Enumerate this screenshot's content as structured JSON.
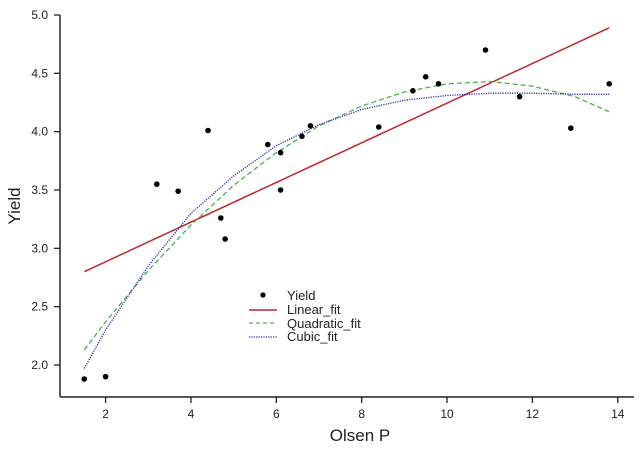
{
  "chart_data": {
    "type": "scatter",
    "title": "",
    "xlabel": "Olsen P",
    "ylabel": "Yield",
    "xlim": [
      0.8,
      14.4
    ],
    "ylim": [
      1.73,
      5.0
    ],
    "xticks": [
      2,
      4,
      6,
      8,
      10,
      12,
      14
    ],
    "yticks": [
      "2.0",
      "2.5",
      "3.0",
      "3.5",
      "4.0",
      "4.5",
      "5.0"
    ],
    "grid": false,
    "legend_position": "center-bottom",
    "points": {
      "name": "Yield",
      "color": "#000000",
      "x": [
        1.5,
        2.0,
        3.2,
        3.7,
        4.4,
        4.7,
        4.8,
        5.8,
        6.1,
        6.1,
        6.6,
        6.8,
        8.4,
        9.2,
        9.5,
        9.8,
        10.9,
        11.7,
        12.9,
        13.8
      ],
      "y": [
        1.88,
        1.9,
        3.55,
        3.49,
        4.01,
        3.26,
        3.08,
        3.89,
        3.82,
        3.5,
        3.96,
        4.05,
        4.04,
        4.35,
        4.47,
        4.41,
        4.7,
        4.3,
        4.03,
        4.41
      ]
    },
    "series": [
      {
        "name": "Linear_fit",
        "color": "#c0262b",
        "style": "solid",
        "x": [
          1.5,
          13.8
        ],
        "y": [
          2.8,
          4.89
        ]
      },
      {
        "name": "Quadratic_fit",
        "color": "#4caf50",
        "style": "dashed",
        "x": [
          1.5,
          2,
          3,
          4,
          5,
          6,
          7,
          8,
          9,
          10,
          11,
          12,
          13,
          13.8
        ],
        "y": [
          2.13,
          2.37,
          2.81,
          3.2,
          3.54,
          3.82,
          4.05,
          4.22,
          4.34,
          4.41,
          4.43,
          4.39,
          4.3,
          4.17
        ]
      },
      {
        "name": "Cubic_fit",
        "color": "#2a2aa8",
        "style": "dotted",
        "x": [
          1.5,
          2,
          3,
          4,
          5,
          6,
          7,
          8,
          9,
          10,
          11,
          12,
          13,
          13.8
        ],
        "y": [
          1.97,
          2.3,
          2.85,
          3.3,
          3.62,
          3.88,
          4.06,
          4.19,
          4.27,
          4.31,
          4.33,
          4.33,
          4.32,
          4.32
        ]
      }
    ]
  }
}
